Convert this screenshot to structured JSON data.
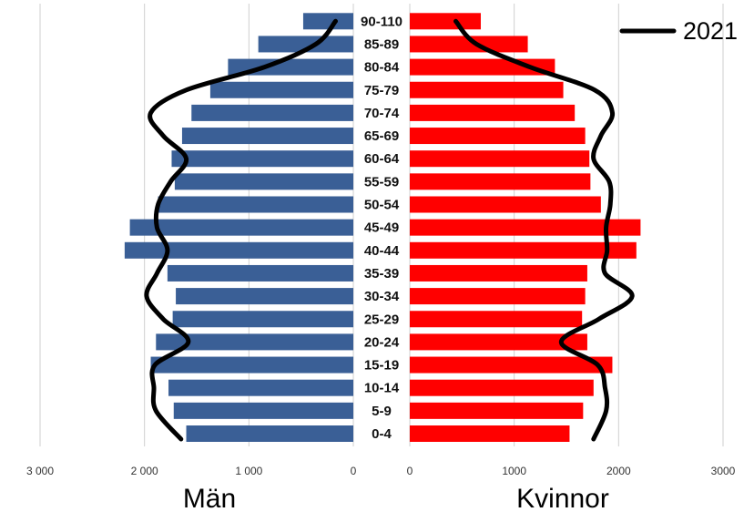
{
  "chart_data": {
    "type": "bar",
    "orientation": "horizontal",
    "layout": "population-pyramid",
    "categories": [
      "0-4",
      "5-9",
      "10-14",
      "15-19",
      "20-24",
      "25-29",
      "30-34",
      "35-39",
      "40-44",
      "45-49",
      "50-54",
      "55-59",
      "60-64",
      "65-69",
      "70-74",
      "75-79",
      "80-84",
      "85-89",
      "90-110"
    ],
    "series": [
      {
        "name": "Män",
        "color": "#3a5f96",
        "values": [
          1600,
          1720,
          1770,
          1940,
          1890,
          1730,
          1700,
          1780,
          2190,
          2140,
          1870,
          1710,
          1740,
          1640,
          1550,
          1370,
          1200,
          910,
          480
        ]
      },
      {
        "name": "Kvinnor",
        "color": "#ff0000",
        "values": [
          1530,
          1660,
          1760,
          1940,
          1700,
          1650,
          1680,
          1700,
          2170,
          2210,
          1830,
          1730,
          1720,
          1680,
          1580,
          1470,
          1390,
          1130,
          680
        ]
      }
    ],
    "overlay": {
      "name": "2021",
      "color": "#000000",
      "type": "line",
      "male": [
        1650,
        1890,
        1910,
        1900,
        1580,
        1820,
        1980,
        1880,
        1780,
        1880,
        1870,
        1750,
        1600,
        1820,
        1940,
        1600,
        850,
        360,
        170
      ],
      "female": [
        1760,
        1880,
        1870,
        1800,
        1450,
        1810,
        2130,
        1870,
        1890,
        1880,
        1920,
        1910,
        1760,
        1830,
        1940,
        1770,
        1150,
        640,
        440
      ]
    },
    "left_axis": {
      "label": "Män",
      "ticks": [
        "3 000",
        "2 000",
        "1 000",
        "0"
      ],
      "range": [
        0,
        3000
      ]
    },
    "right_axis": {
      "label": "Kvinnor",
      "ticks": [
        "0",
        "1000",
        "2000",
        "3000"
      ],
      "range": [
        0,
        3000
      ]
    },
    "legend": {
      "position": "top-right",
      "label": "2021"
    },
    "grid": true
  }
}
